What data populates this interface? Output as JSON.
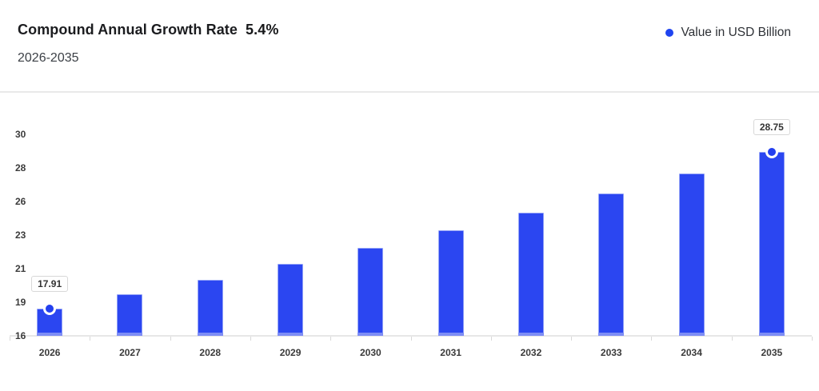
{
  "header": {
    "title": "Compound Annual Growth Rate",
    "cagr": "5.4%",
    "period": "2026-2035"
  },
  "legend": {
    "label": "Value in USD Billion",
    "marker_color": "#1f44f0"
  },
  "colors": {
    "bar_fill": "#2b46f1",
    "bar_border": "#93a2f7",
    "bar_bottom_band": "#7d8df5",
    "marker_fill": "#2440ef",
    "axis_line": "#e7e7e7",
    "tick_mark": "#d9d9d9",
    "axis_text": "#3a3a3a"
  },
  "chart_data": {
    "type": "bar",
    "title": "Compound Annual Growth Rate 5.4%",
    "subtitle": "2026-2035",
    "series_name": "Value in USD Billion",
    "unit": "USD Billion",
    "categories": [
      "2026",
      "2027",
      "2028",
      "2029",
      "2030",
      "2031",
      "2032",
      "2033",
      "2034",
      "2035"
    ],
    "values": [
      17.91,
      18.88,
      19.9,
      20.97,
      22.1,
      23.3,
      24.56,
      25.88,
      27.28,
      28.75
    ],
    "ylim": [
      16,
      30
    ],
    "y_tick_labels": [
      "16",
      "19",
      "21",
      "23",
      "26",
      "28",
      "30"
    ],
    "grid": false,
    "legend_position": "top-right",
    "annotated_points": [
      {
        "category": "2026",
        "value": 17.91,
        "label": "17.91"
      },
      {
        "category": "2035",
        "value": 28.75,
        "label": "28.75"
      }
    ]
  }
}
